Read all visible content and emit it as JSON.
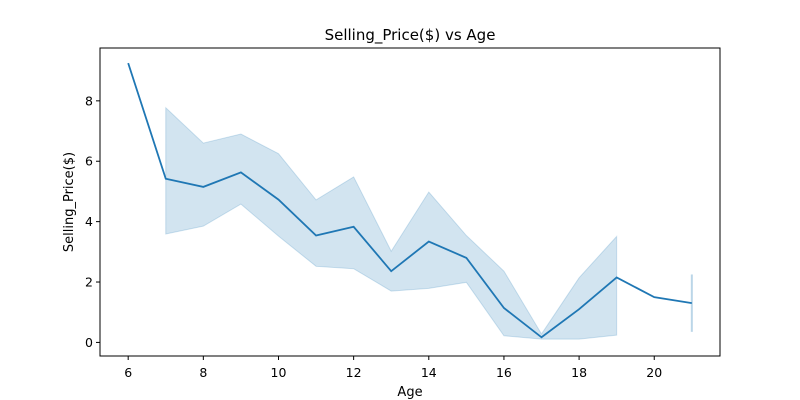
{
  "chart_data": {
    "type": "line",
    "title": "Selling_Price($) vs Age",
    "xlabel": "Age",
    "ylabel": "Selling_Price($)",
    "xlim": [
      5.25,
      21.75
    ],
    "ylim": [
      -0.45,
      9.75
    ],
    "xticks": [
      6,
      8,
      10,
      12,
      14,
      16,
      18,
      20
    ],
    "yticks": [
      0,
      2,
      4,
      6,
      8
    ],
    "grid": false,
    "legend": "none",
    "series": [
      {
        "x": [
          6,
          7,
          8,
          9,
          10,
          11,
          12,
          13,
          14,
          15,
          16,
          17,
          18,
          19,
          20,
          21
        ],
        "y": [
          9.25,
          5.42,
          5.15,
          5.63,
          4.73,
          3.54,
          3.83,
          2.36,
          3.34,
          2.8,
          1.14,
          0.17,
          1.1,
          2.15,
          1.5,
          1.3
        ],
        "ci_upper": [
          9.25,
          7.77,
          6.6,
          6.9,
          6.25,
          4.72,
          5.48,
          3.02,
          4.98,
          3.54,
          2.36,
          0.28,
          2.14,
          3.51,
          1.5,
          2.25
        ],
        "ci_lower": [
          9.25,
          3.59,
          3.85,
          4.58,
          3.52,
          2.52,
          2.44,
          1.7,
          1.79,
          1.99,
          0.22,
          0.11,
          0.11,
          0.24,
          1.5,
          0.35
        ]
      }
    ],
    "colors": {
      "line": "#1f77b4",
      "band": "#1f77b4"
    }
  }
}
